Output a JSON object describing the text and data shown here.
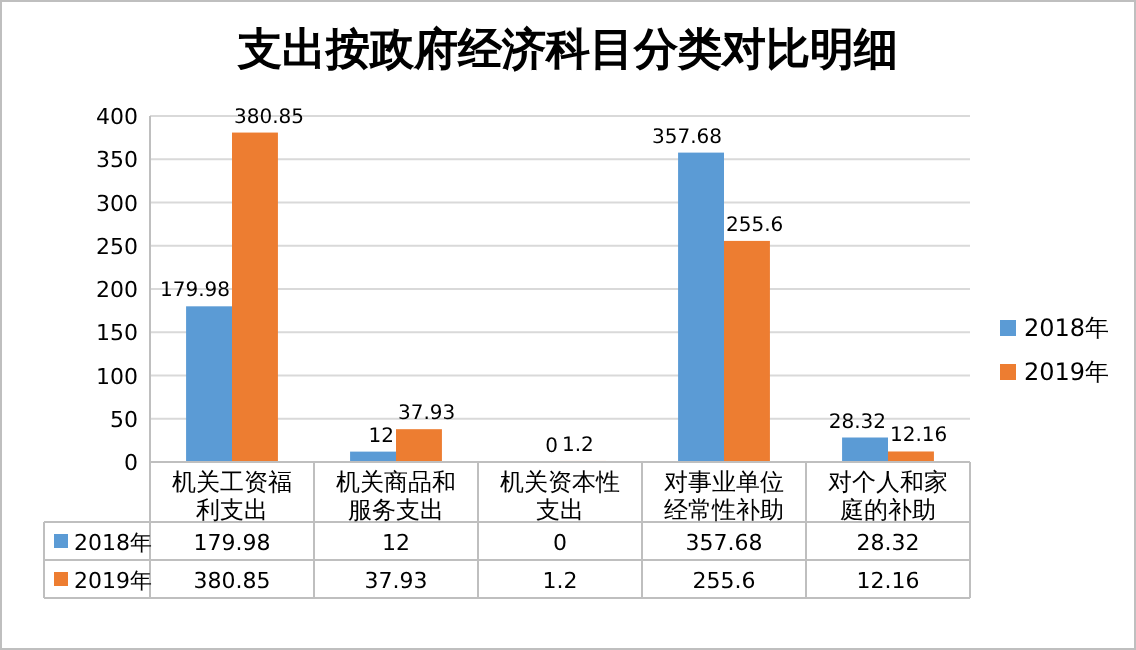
{
  "chart_data": {
    "type": "bar",
    "title": "支出按政府经济科目分类对比明细",
    "categories": [
      "机关工资福利支出",
      "机关商品和服务支出",
      "机关资本性支出",
      "对事业单位经常性补助",
      "对个人和家庭的补助"
    ],
    "series": [
      {
        "name": "2018年",
        "color": "#5b9bd5",
        "values": [
          179.98,
          12,
          0,
          357.68,
          28.32
        ],
        "value_labels": [
          "179.98",
          "12",
          "0",
          "357.68",
          "28.32"
        ]
      },
      {
        "name": "2019年",
        "color": "#ed7d31",
        "values": [
          380.85,
          37.93,
          1.2,
          255.6,
          12.16
        ],
        "value_labels": [
          "380.85",
          "37.93",
          "1.2",
          "255.6",
          "12.16"
        ]
      }
    ],
    "ylim": [
      0,
      400
    ],
    "yticks": [
      0,
      50,
      100,
      150,
      200,
      250,
      300,
      350,
      400
    ],
    "grid": "y",
    "legend": "right",
    "data_labels": true
  }
}
